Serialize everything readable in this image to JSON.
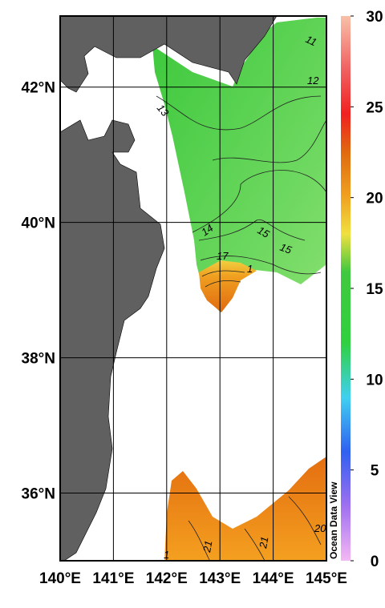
{
  "map": {
    "lon_lim": [
      140,
      145
    ],
    "lat_lim": [
      35,
      43.05
    ],
    "lon_ticks": [
      {
        "value": 140,
        "label": "140°E"
      },
      {
        "value": 141,
        "label": "141°E"
      },
      {
        "value": 142,
        "label": "142°E"
      },
      {
        "value": 143,
        "label": "143°E"
      },
      {
        "value": 144,
        "label": "144°E"
      },
      {
        "value": 145,
        "label": "145°E"
      }
    ],
    "lat_ticks": [
      {
        "value": 36,
        "label": "36°N"
      },
      {
        "value": 38,
        "label": "38°N"
      },
      {
        "value": 40,
        "label": "40°N"
      },
      {
        "value": 42,
        "label": "42°N"
      }
    ],
    "contour_labels": [
      "11",
      "12",
      "13",
      "14",
      "15",
      "15",
      "17",
      "1",
      "21",
      "21",
      "20",
      "1"
    ]
  },
  "colorbar": {
    "lim": [
      0,
      30
    ],
    "ticks": [
      0,
      5,
      10,
      15,
      20,
      25,
      30
    ]
  },
  "watermark": "Ocean Data View"
}
